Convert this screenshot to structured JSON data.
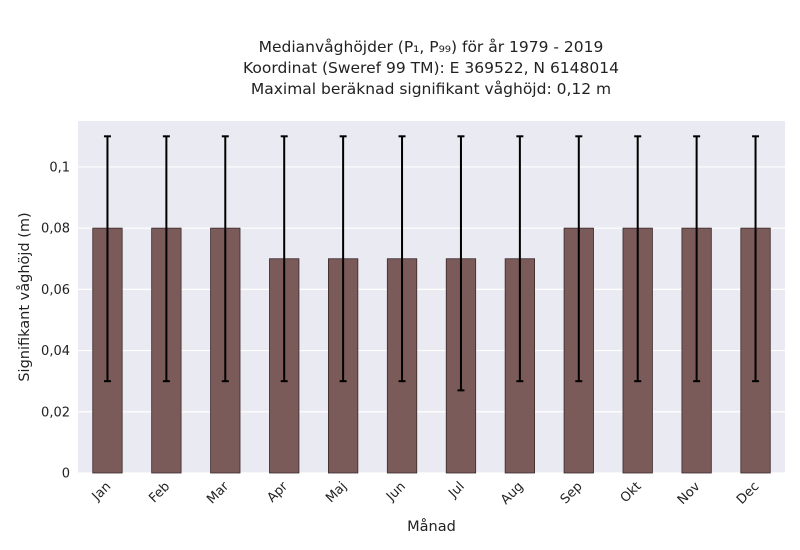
{
  "chart_data": {
    "type": "bar",
    "title_lines": [
      "Medianvåghöjder (P₁, P₉₉) för år 1979 - 2019",
      "Koordinat (Sweref 99 TM): E 369522, N 6148014",
      "Maximal beräknad signifikant våghöjd: 0,12 m"
    ],
    "xlabel": "Månad",
    "ylabel": "Signifikant våghöjd (m)",
    "categories": [
      "Jan",
      "Feb",
      "Mar",
      "Apr",
      "Maj",
      "Jun",
      "Jul",
      "Aug",
      "Sep",
      "Okt",
      "Nov",
      "Dec"
    ],
    "values": [
      0.08,
      0.08,
      0.08,
      0.07,
      0.07,
      0.07,
      0.07,
      0.07,
      0.08,
      0.08,
      0.08,
      0.08
    ],
    "error_low": [
      0.03,
      0.03,
      0.03,
      0.03,
      0.03,
      0.03,
      0.027,
      0.03,
      0.03,
      0.03,
      0.03,
      0.03
    ],
    "error_high": [
      0.11,
      0.11,
      0.11,
      0.11,
      0.11,
      0.11,
      0.11,
      0.11,
      0.11,
      0.11,
      0.11,
      0.11
    ],
    "ylim": [
      0,
      0.115
    ],
    "yticks": [
      0,
      0.02,
      0.04,
      0.06,
      0.08,
      0.1
    ],
    "ytick_labels": [
      "0",
      "0,02",
      "0,04",
      "0,06",
      "0,08",
      "0,1"
    ],
    "grid": true,
    "colors": {
      "bar": "#7b5a5a",
      "bar_edge": "#3a2a2a",
      "plot_background": "#eaeaf2",
      "grid": "#ffffff",
      "error_bar": "#000000"
    }
  }
}
